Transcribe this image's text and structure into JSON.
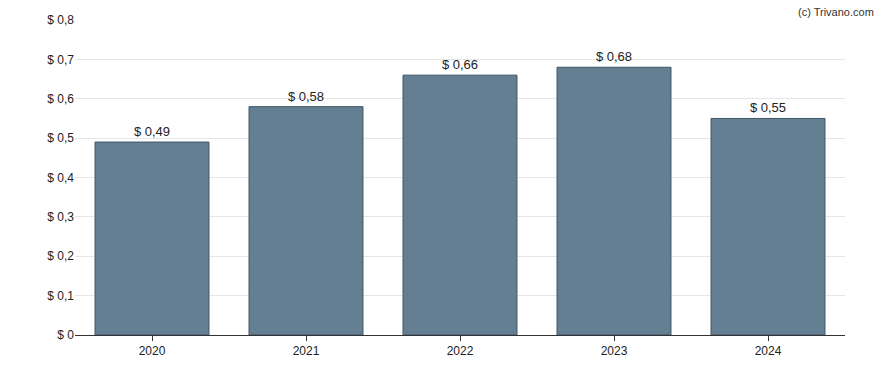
{
  "chart_data": {
    "type": "bar",
    "categories": [
      "2020",
      "2021",
      "2022",
      "2023",
      "2024"
    ],
    "values": [
      0.49,
      0.58,
      0.66,
      0.68,
      0.55
    ],
    "value_labels": [
      "$ 0,49",
      "$ 0,58",
      "$ 0,66",
      "$ 0,68",
      "$ 0,55"
    ],
    "data_labels": true,
    "color": "#647f92",
    "ylim": [
      0,
      0.8
    ],
    "yticks": [
      {
        "value": 0,
        "label": "$ 0"
      },
      {
        "value": 0.1,
        "label": "$ 0,1"
      },
      {
        "value": 0.2,
        "label": "$ 0,2"
      },
      {
        "value": 0.3,
        "label": "$ 0,3"
      },
      {
        "value": 0.4,
        "label": "$ 0,4"
      },
      {
        "value": 0.5,
        "label": "$ 0,5"
      },
      {
        "value": 0.6,
        "label": "$ 0,6"
      },
      {
        "value": 0.7,
        "label": "$ 0,7"
      },
      {
        "value": 0.8,
        "label": "$ 0,8"
      }
    ],
    "grid": true,
    "annotations": [
      "(c) Trivano.com"
    ]
  }
}
